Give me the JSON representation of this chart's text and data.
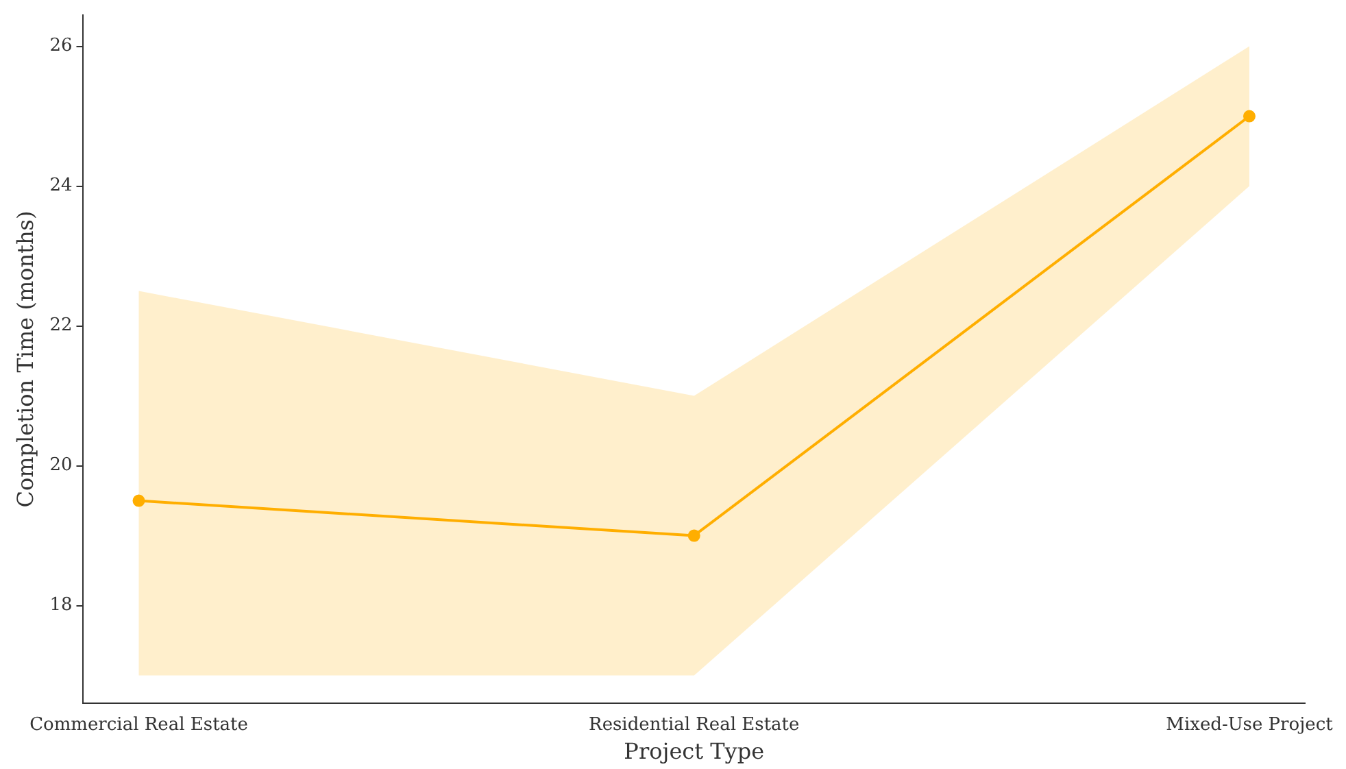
{
  "chart_data": {
    "type": "line",
    "xlabel": "Project Type",
    "ylabel": "Completion Time (months)",
    "categories": [
      "Commercial Real Estate",
      "Residential Real Estate",
      "Mixed-Use Project"
    ],
    "series": [
      {
        "color": "#ffae00",
        "values": [
          19.5,
          19,
          25
        ],
        "lower": [
          17,
          17,
          24
        ],
        "upper": [
          22.5,
          21,
          26
        ]
      }
    ],
    "ylim": [
      16.6,
      26.45
    ],
    "yticks": [
      18,
      20,
      22,
      24,
      26
    ],
    "grid": false,
    "legend": false,
    "marker": "circle",
    "line_style": "solid"
  }
}
